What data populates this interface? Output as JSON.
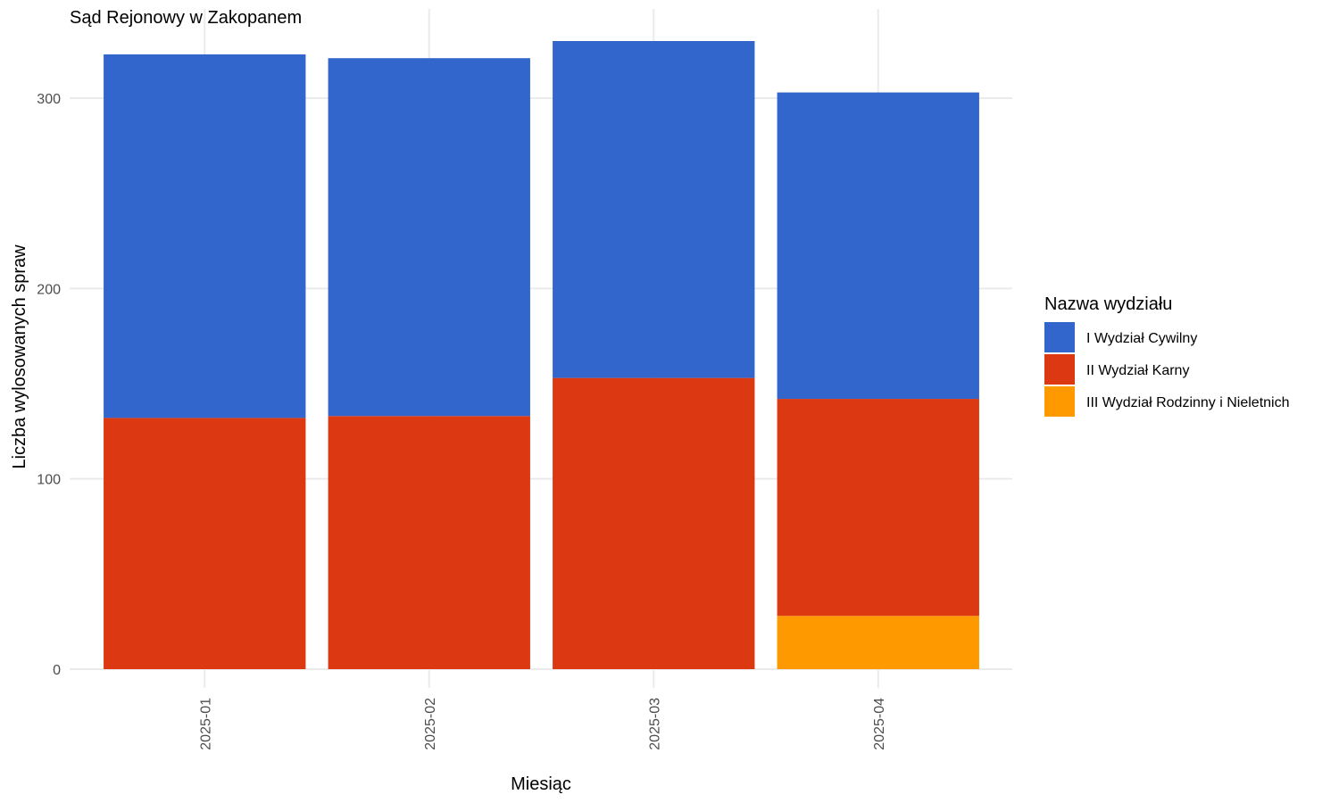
{
  "chart_data": {
    "type": "bar",
    "stacked": true,
    "title": "Sąd Rejonowy w Zakopanem",
    "xlabel": "Miesiąc",
    "ylabel": "Liczba wylosowanych spraw",
    "categories": [
      "2025-01",
      "2025-02",
      "2025-03",
      "2025-04"
    ],
    "ylim": [
      0,
      332
    ],
    "yticks": [
      0,
      100,
      200,
      300
    ],
    "grid": true,
    "legend": {
      "title": "Nazwa wydziału",
      "placement": "right"
    },
    "series": [
      {
        "name": "III Wydział Rodzinny i Nieletnich",
        "color": "#FF9900",
        "values": [
          0,
          0,
          0,
          28
        ]
      },
      {
        "name": "II Wydział Karny",
        "color": "#DC3912",
        "values": [
          132,
          133,
          153,
          114
        ]
      },
      {
        "name": "I Wydział Cywilny",
        "color": "#3366CC",
        "values": [
          191,
          188,
          177,
          161
        ]
      }
    ],
    "legend_order": [
      "I Wydział Cywilny",
      "II Wydział Karny",
      "III Wydział Rodzinny i Nieletnich"
    ]
  }
}
